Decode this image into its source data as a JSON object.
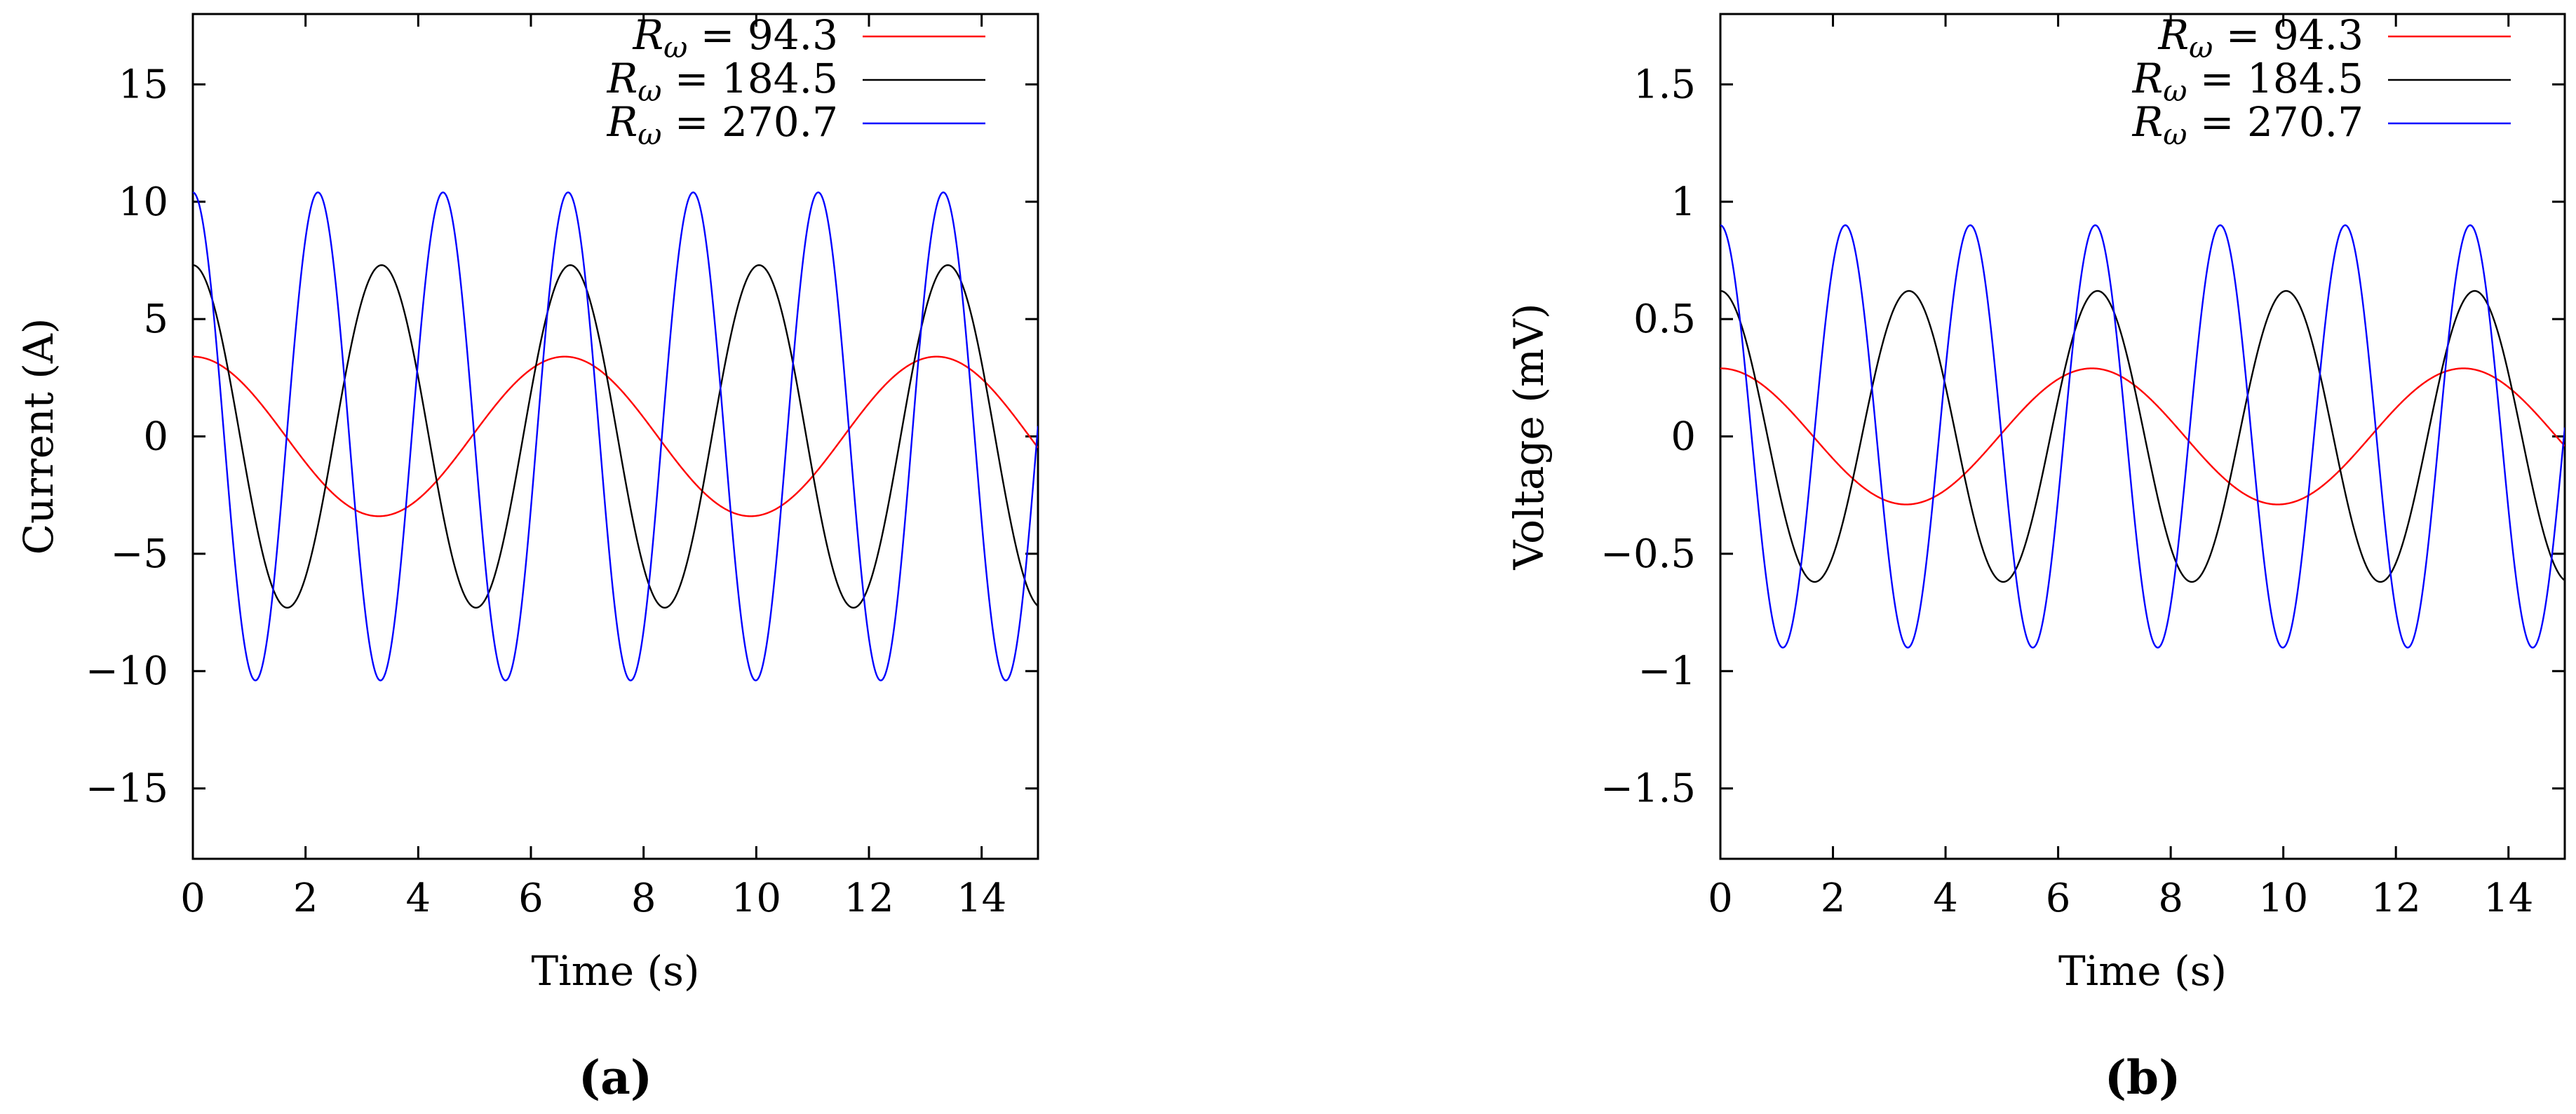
{
  "chart_data": [
    {
      "type": "line",
      "panel_label": "(a)",
      "xlabel": "Time (s)",
      "ylabel": "Current (A)",
      "xlim": [
        0,
        15
      ],
      "ylim": [
        -18,
        18
      ],
      "xticks": [
        0,
        2,
        4,
        6,
        8,
        10,
        12,
        14
      ],
      "yticks": [
        -15,
        -10,
        -5,
        0,
        5,
        10,
        15
      ],
      "ytick_labels": [
        "−15",
        "−10",
        "−5",
        "0",
        "5",
        "10",
        "15"
      ],
      "legend_position": "top-right",
      "grid": false,
      "series": [
        {
          "name": "R_ω = 94.3",
          "legend_symbol": "R",
          "legend_subscript": "ω",
          "legend_value": " = 94.3",
          "color": "#ff0000",
          "amplitude": 3.4,
          "period": 6.6,
          "phase": 0.0
        },
        {
          "name": "R_ω = 184.5",
          "legend_symbol": "R",
          "legend_subscript": "ω",
          "legend_value": " = 184.5",
          "color": "#000000",
          "amplitude": 7.3,
          "period": 3.35,
          "phase": 0.0
        },
        {
          "name": "R_ω = 270.7",
          "legend_symbol": "R",
          "legend_subscript": "ω",
          "legend_value": " = 270.7",
          "color": "#0000ff",
          "amplitude": 10.4,
          "period": 2.22,
          "phase": 0.0
        }
      ]
    },
    {
      "type": "line",
      "panel_label": "(b)",
      "xlabel": "Time (s)",
      "ylabel": "Voltage (mV)",
      "xlim": [
        0,
        15
      ],
      "ylim": [
        -1.8,
        1.8
      ],
      "xticks": [
        0,
        2,
        4,
        6,
        8,
        10,
        12,
        14
      ],
      "yticks": [
        -1.5,
        -1,
        -0.5,
        0,
        0.5,
        1,
        1.5
      ],
      "ytick_labels": [
        "−1.5",
        "−1",
        "−0.5",
        "0",
        "0.5",
        "1",
        "1.5"
      ],
      "legend_position": "top-right",
      "grid": false,
      "series": [
        {
          "name": "R_ω = 94.3",
          "legend_symbol": "R",
          "legend_subscript": "ω",
          "legend_value": " = 94.3",
          "color": "#ff0000",
          "amplitude": 0.29,
          "period": 6.6,
          "phase": 0.0
        },
        {
          "name": "R_ω = 184.5",
          "legend_symbol": "R",
          "legend_subscript": "ω",
          "legend_value": " = 184.5",
          "color": "#000000",
          "amplitude": 0.62,
          "period": 3.35,
          "phase": 0.0
        },
        {
          "name": "R_ω = 270.7",
          "legend_symbol": "R",
          "legend_subscript": "ω",
          "legend_value": " = 270.7",
          "color": "#0000ff",
          "amplitude": 0.9,
          "period": 2.22,
          "phase": 0.0
        }
      ]
    }
  ]
}
